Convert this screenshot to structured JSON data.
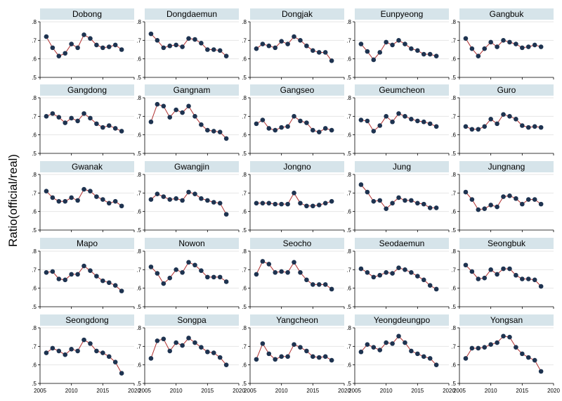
{
  "chart_data": {
    "type": "line",
    "title": "",
    "ylabel": "Ratio(official/real)",
    "xlabel": "",
    "x": [
      2006,
      2007,
      2008,
      2009,
      2010,
      2011,
      2012,
      2013,
      2014,
      2015,
      2016,
      2017,
      2018
    ],
    "xlim": [
      2005,
      2020
    ],
    "ylim": [
      0.5,
      0.8
    ],
    "x_ticks": [
      2005,
      2010,
      2015,
      2020
    ],
    "y_ticks": [
      0.5,
      0.6,
      0.7,
      0.8
    ],
    "y_tick_labels": [
      ".5",
      ".6",
      ".7",
      ".8"
    ],
    "grid": true,
    "line_color": "#b03030",
    "marker_color": "#1e3350",
    "strip_color": "#d6e4ea",
    "panels": [
      {
        "name": "Dobong",
        "values": [
          0.72,
          0.66,
          0.615,
          0.63,
          0.68,
          0.66,
          0.73,
          0.71,
          0.675,
          0.66,
          0.665,
          0.675,
          0.65
        ]
      },
      {
        "name": "Dongdaemun",
        "values": [
          0.735,
          0.7,
          0.66,
          0.67,
          0.675,
          0.665,
          0.71,
          0.705,
          0.685,
          0.65,
          0.65,
          0.645,
          0.615
        ]
      },
      {
        "name": "Dongjak",
        "values": [
          0.655,
          0.68,
          0.67,
          0.66,
          0.695,
          0.68,
          0.72,
          0.7,
          0.67,
          0.645,
          0.635,
          0.635,
          0.59
        ]
      },
      {
        "name": "Eunpyeong",
        "values": [
          0.68,
          0.64,
          0.595,
          0.635,
          0.69,
          0.675,
          0.7,
          0.68,
          0.655,
          0.645,
          0.625,
          0.625,
          0.615
        ]
      },
      {
        "name": "Gangbuk",
        "values": [
          0.71,
          0.655,
          0.615,
          0.655,
          0.69,
          0.665,
          0.7,
          0.69,
          0.68,
          0.66,
          0.665,
          0.675,
          0.665
        ]
      },
      {
        "name": "Gangdong",
        "values": [
          0.7,
          0.715,
          0.695,
          0.665,
          0.69,
          0.675,
          0.715,
          0.69,
          0.66,
          0.64,
          0.65,
          0.635,
          0.62
        ]
      },
      {
        "name": "Gangnam",
        "values": [
          0.67,
          0.765,
          0.755,
          0.695,
          0.735,
          0.72,
          0.755,
          0.7,
          0.655,
          0.625,
          0.62,
          0.615,
          0.58
        ]
      },
      {
        "name": "Gangseo",
        "values": [
          0.66,
          0.68,
          0.635,
          0.625,
          0.64,
          0.645,
          0.7,
          0.675,
          0.665,
          0.625,
          0.615,
          0.635,
          0.625
        ]
      },
      {
        "name": "Geumcheon",
        "values": [
          0.68,
          0.675,
          0.62,
          0.65,
          0.7,
          0.67,
          0.715,
          0.7,
          0.685,
          0.675,
          0.67,
          0.66,
          0.645
        ]
      },
      {
        "name": "Guro",
        "values": [
          0.645,
          0.63,
          0.63,
          0.645,
          0.685,
          0.66,
          0.71,
          0.7,
          0.685,
          0.65,
          0.64,
          0.645,
          0.64
        ]
      },
      {
        "name": "Gwanak",
        "values": [
          0.71,
          0.675,
          0.655,
          0.655,
          0.675,
          0.66,
          0.72,
          0.71,
          0.68,
          0.665,
          0.645,
          0.655,
          0.63
        ]
      },
      {
        "name": "Gwangjin",
        "values": [
          0.665,
          0.695,
          0.68,
          0.665,
          0.67,
          0.66,
          0.705,
          0.695,
          0.67,
          0.66,
          0.65,
          0.645,
          0.585
        ]
      },
      {
        "name": "Jongno",
        "values": [
          0.645,
          0.645,
          0.645,
          0.64,
          0.64,
          0.64,
          0.7,
          0.645,
          0.63,
          0.63,
          0.635,
          0.645,
          0.655
        ]
      },
      {
        "name": "Jung",
        "values": [
          0.745,
          0.705,
          0.655,
          0.66,
          0.615,
          0.645,
          0.675,
          0.66,
          0.66,
          0.645,
          0.64,
          0.62,
          0.62
        ]
      },
      {
        "name": "Jungnang",
        "values": [
          0.705,
          0.665,
          0.61,
          0.615,
          0.635,
          0.625,
          0.68,
          0.685,
          0.67,
          0.64,
          0.665,
          0.665,
          0.64
        ]
      },
      {
        "name": "Mapo",
        "values": [
          0.685,
          0.69,
          0.65,
          0.645,
          0.675,
          0.675,
          0.72,
          0.695,
          0.665,
          0.64,
          0.63,
          0.615,
          0.585
        ]
      },
      {
        "name": "Nowon",
        "values": [
          0.715,
          0.68,
          0.625,
          0.655,
          0.7,
          0.685,
          0.74,
          0.725,
          0.695,
          0.66,
          0.66,
          0.66,
          0.635
        ]
      },
      {
        "name": "Seocho",
        "values": [
          0.675,
          0.745,
          0.73,
          0.685,
          0.69,
          0.685,
          0.74,
          0.685,
          0.645,
          0.62,
          0.62,
          0.62,
          0.595
        ]
      },
      {
        "name": "Seodaemun",
        "values": [
          0.705,
          0.685,
          0.66,
          0.67,
          0.685,
          0.68,
          0.71,
          0.7,
          0.685,
          0.665,
          0.645,
          0.615,
          0.595
        ]
      },
      {
        "name": "Seongbuk",
        "values": [
          0.725,
          0.69,
          0.65,
          0.655,
          0.7,
          0.675,
          0.705,
          0.705,
          0.67,
          0.65,
          0.65,
          0.645,
          0.61
        ]
      },
      {
        "name": "Seongdong",
        "values": [
          0.665,
          0.69,
          0.675,
          0.655,
          0.685,
          0.675,
          0.735,
          0.715,
          0.675,
          0.665,
          0.645,
          0.615,
          0.555
        ]
      },
      {
        "name": "Songpa",
        "values": [
          0.635,
          0.73,
          0.74,
          0.675,
          0.72,
          0.705,
          0.745,
          0.72,
          0.695,
          0.67,
          0.665,
          0.64,
          0.6
        ]
      },
      {
        "name": "Yangcheon",
        "values": [
          0.63,
          0.715,
          0.66,
          0.63,
          0.645,
          0.645,
          0.71,
          0.695,
          0.675,
          0.645,
          0.64,
          0.645,
          0.625
        ]
      },
      {
        "name": "Yeongdeungpo",
        "values": [
          0.67,
          0.71,
          0.695,
          0.68,
          0.72,
          0.715,
          0.755,
          0.72,
          0.675,
          0.66,
          0.645,
          0.635,
          0.6
        ]
      },
      {
        "name": "Yongsan",
        "values": [
          0.635,
          0.69,
          0.69,
          0.695,
          0.71,
          0.72,
          0.755,
          0.75,
          0.695,
          0.66,
          0.64,
          0.625,
          0.565
        ]
      }
    ]
  }
}
